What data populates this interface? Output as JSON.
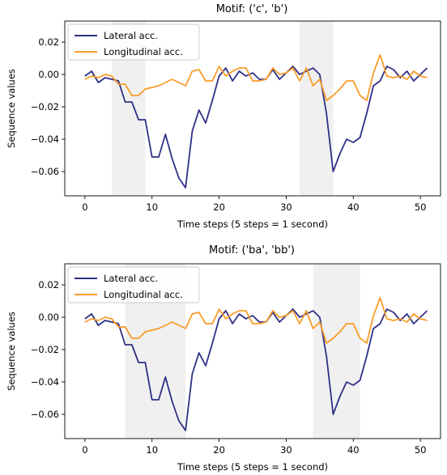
{
  "colors": {
    "lateral": "#2e3086",
    "longitudinal": "#f99c2a",
    "highlight": "#e6e6e6"
  },
  "chart_data": [
    {
      "type": "line",
      "title": "Motif: ('c', 'b')",
      "xlabel": "Time steps (5 steps = 1 second)",
      "ylabel": "Sequence values",
      "xlim": [
        -3,
        53
      ],
      "ylim": [
        -0.075,
        0.033
      ],
      "xticks": [
        0,
        10,
        20,
        30,
        40,
        50
      ],
      "yticks": [
        0.02,
        0.0,
        -0.02,
        -0.04,
        -0.06
      ],
      "ytick_labels": [
        "0.02",
        "0.00",
        "−0.02",
        "−0.04",
        "−0.06"
      ],
      "legend": "top-left",
      "highlights": [
        [
          4,
          9
        ],
        [
          32,
          37
        ]
      ],
      "x": [
        0,
        1,
        2,
        3,
        4,
        5,
        6,
        7,
        8,
        9,
        10,
        11,
        12,
        13,
        14,
        15,
        16,
        17,
        18,
        19,
        20,
        21,
        22,
        23,
        24,
        25,
        26,
        27,
        28,
        29,
        30,
        31,
        32,
        33,
        34,
        35,
        36,
        37,
        38,
        39,
        40,
        41,
        42,
        43,
        44,
        45,
        46,
        47,
        48,
        49,
        50,
        51
      ],
      "series": [
        {
          "name": "Lateral acc.",
          "values": [
            -0.001,
            0.002,
            -0.005,
            -0.002,
            -0.003,
            -0.004,
            -0.017,
            -0.017,
            -0.028,
            -0.028,
            -0.051,
            -0.051,
            -0.037,
            -0.052,
            -0.064,
            -0.07,
            -0.035,
            -0.022,
            -0.03,
            -0.016,
            -0.001,
            0.004,
            -0.004,
            0.002,
            -0.001,
            0.001,
            -0.003,
            -0.003,
            0.003,
            -0.003,
            0.001,
            0.005,
            0.0,
            0.002,
            0.004,
            0.0,
            -0.024,
            -0.06,
            -0.049,
            -0.04,
            -0.042,
            -0.039,
            -0.024,
            -0.007,
            -0.004,
            0.005,
            0.003,
            -0.002,
            0.002,
            -0.004,
            0.0,
            0.004
          ]
        },
        {
          "name": "Longitudinal acc.",
          "values": [
            -0.003,
            -0.001,
            -0.002,
            0.0,
            -0.001,
            -0.006,
            -0.006,
            -0.013,
            -0.013,
            -0.009,
            -0.008,
            -0.007,
            -0.005,
            -0.003,
            -0.005,
            -0.007,
            0.002,
            0.003,
            -0.004,
            -0.004,
            0.005,
            -0.001,
            0.002,
            0.004,
            0.004,
            -0.004,
            -0.004,
            -0.003,
            0.004,
            0.0,
            0.001,
            0.004,
            -0.004,
            0.004,
            -0.007,
            -0.003,
            -0.016,
            -0.013,
            -0.009,
            -0.004,
            -0.004,
            -0.013,
            -0.016,
            0.001,
            0.012,
            -0.001,
            -0.002,
            -0.001,
            -0.003,
            0.002,
            -0.001,
            -0.002
          ]
        }
      ]
    },
    {
      "type": "line",
      "title": "Motif: ('ba', 'bb')",
      "xlabel": "Time steps (5 steps = 1 second)",
      "ylabel": "Sequence values",
      "xlim": [
        -3,
        53
      ],
      "ylim": [
        -0.075,
        0.033
      ],
      "xticks": [
        0,
        10,
        20,
        30,
        40,
        50
      ],
      "yticks": [
        0.02,
        0.0,
        -0.02,
        -0.04,
        -0.06
      ],
      "ytick_labels": [
        "0.02",
        "0.00",
        "−0.02",
        "−0.04",
        "−0.06"
      ],
      "legend": "top-left",
      "highlights": [
        [
          6,
          15
        ],
        [
          34,
          41
        ]
      ],
      "x": [
        0,
        1,
        2,
        3,
        4,
        5,
        6,
        7,
        8,
        9,
        10,
        11,
        12,
        13,
        14,
        15,
        16,
        17,
        18,
        19,
        20,
        21,
        22,
        23,
        24,
        25,
        26,
        27,
        28,
        29,
        30,
        31,
        32,
        33,
        34,
        35,
        36,
        37,
        38,
        39,
        40,
        41,
        42,
        43,
        44,
        45,
        46,
        47,
        48,
        49,
        50,
        51
      ],
      "series": [
        {
          "name": "Lateral acc.",
          "values": [
            -0.001,
            0.002,
            -0.005,
            -0.002,
            -0.003,
            -0.004,
            -0.017,
            -0.017,
            -0.028,
            -0.028,
            -0.051,
            -0.051,
            -0.037,
            -0.052,
            -0.064,
            -0.07,
            -0.035,
            -0.022,
            -0.03,
            -0.016,
            -0.001,
            0.004,
            -0.004,
            0.002,
            -0.001,
            0.001,
            -0.003,
            -0.003,
            0.003,
            -0.003,
            0.001,
            0.005,
            0.0,
            0.002,
            0.004,
            0.0,
            -0.024,
            -0.06,
            -0.049,
            -0.04,
            -0.042,
            -0.039,
            -0.024,
            -0.007,
            -0.004,
            0.005,
            0.003,
            -0.002,
            0.002,
            -0.004,
            0.0,
            0.004
          ]
        },
        {
          "name": "Longitudinal acc.",
          "values": [
            -0.003,
            -0.001,
            -0.002,
            0.0,
            -0.001,
            -0.006,
            -0.006,
            -0.013,
            -0.013,
            -0.009,
            -0.008,
            -0.007,
            -0.005,
            -0.003,
            -0.005,
            -0.007,
            0.002,
            0.003,
            -0.004,
            -0.004,
            0.005,
            -0.001,
            0.002,
            0.004,
            0.004,
            -0.004,
            -0.004,
            -0.003,
            0.004,
            0.0,
            0.001,
            0.004,
            -0.004,
            0.004,
            -0.007,
            -0.003,
            -0.016,
            -0.013,
            -0.009,
            -0.004,
            -0.004,
            -0.013,
            -0.016,
            0.001,
            0.012,
            -0.001,
            -0.002,
            -0.001,
            -0.003,
            0.002,
            -0.001,
            -0.002
          ]
        }
      ]
    }
  ]
}
